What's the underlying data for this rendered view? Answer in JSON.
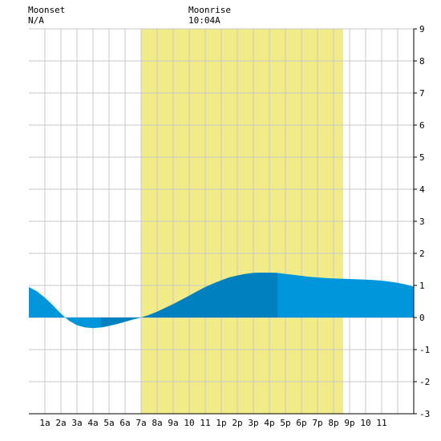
{
  "header": {
    "moonset_label": "Moonset",
    "moonset_value": "N/A",
    "moonrise_label": "Moonrise",
    "moonrise_value": "10:04A"
  },
  "colors": {
    "background": "#ffffff",
    "grid": "#c8c8c8",
    "daylight": "#f2ec88",
    "tide_light": "#0096dc",
    "tide_dark": "#0080be",
    "axis_line": "#000000"
  },
  "chart_data": {
    "type": "area",
    "xlabel": "",
    "ylabel": "",
    "xlim": [
      0,
      24
    ],
    "ylim": [
      -3,
      9
    ],
    "x_tick_labels": [
      "1a",
      "2a",
      "3a",
      "4a",
      "5a",
      "6a",
      "7a",
      "8a",
      "9a",
      "10",
      "11",
      "1p",
      "2p",
      "3p",
      "4p",
      "5p",
      "6p",
      "7p",
      "8p",
      "9p",
      "10",
      "11"
    ],
    "y_ticks": [
      -3,
      -2,
      -1,
      0,
      1,
      2,
      3,
      4,
      5,
      6,
      7,
      8,
      9
    ],
    "daylight": {
      "start": 7.0,
      "end": 19.6
    },
    "dark_bands": [
      {
        "from": 4.1,
        "to": 7.0
      },
      {
        "from": 7.0,
        "to": 15.9
      }
    ],
    "series": [
      {
        "x": [
          0,
          0.5,
          1,
          1.5,
          2,
          2.5,
          3,
          3.5,
          4,
          4.5,
          5,
          5.5,
          6,
          6.5,
          7,
          7.5,
          8,
          8.5,
          9,
          9.5,
          10,
          10.5,
          11,
          11.5,
          12,
          12.5,
          13,
          13.5,
          14,
          14.5,
          15,
          15.5,
          16,
          16.5,
          17,
          17.5,
          18,
          18.5,
          19,
          19.5,
          20,
          20.5,
          21,
          21.5,
          22,
          22.5,
          23,
          23.5,
          24
        ],
        "values": [
          0.95,
          0.82,
          0.62,
          0.38,
          0.12,
          -0.1,
          -0.24,
          -0.31,
          -0.33,
          -0.31,
          -0.26,
          -0.2,
          -0.13,
          -0.06,
          0.0,
          0.08,
          0.18,
          0.3,
          0.42,
          0.55,
          0.68,
          0.82,
          0.95,
          1.06,
          1.16,
          1.25,
          1.31,
          1.36,
          1.39,
          1.4,
          1.4,
          1.39,
          1.36,
          1.33,
          1.3,
          1.27,
          1.25,
          1.23,
          1.22,
          1.21,
          1.2,
          1.19,
          1.18,
          1.17,
          1.15,
          1.12,
          1.08,
          1.03,
          0.96
        ]
      }
    ]
  }
}
